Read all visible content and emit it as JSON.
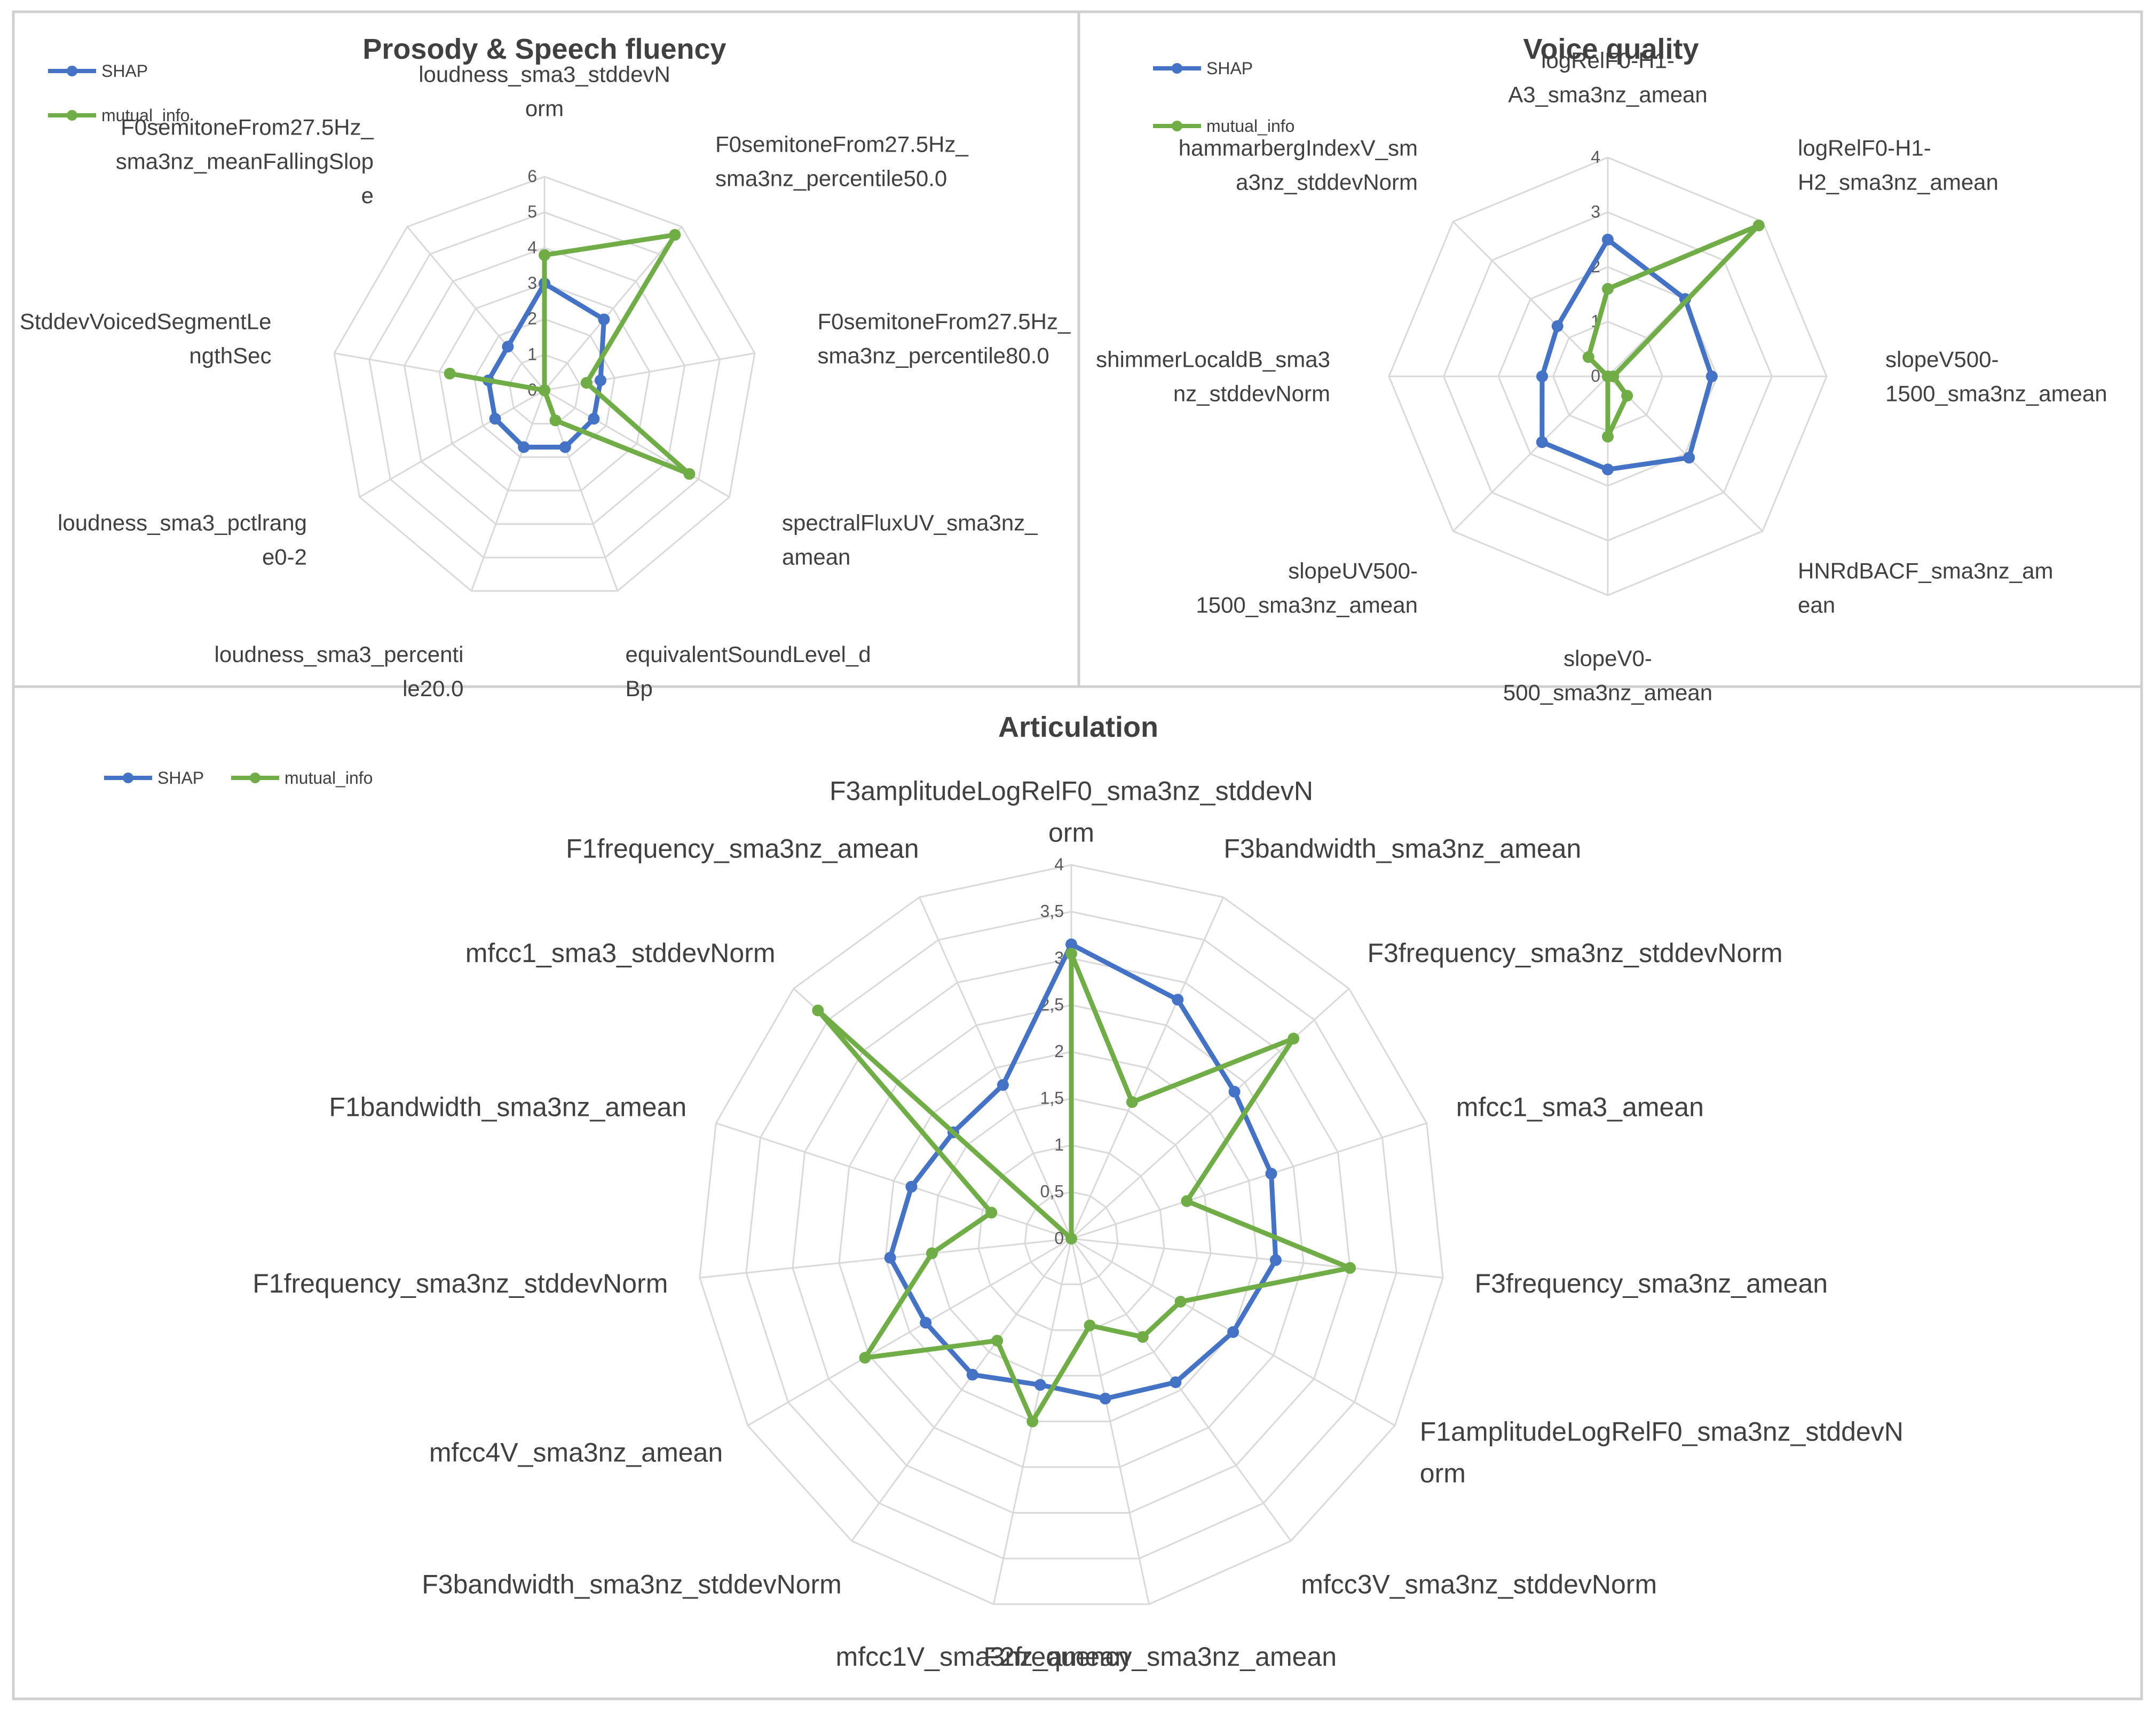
{
  "colors": {
    "shap": "#4472C4",
    "mutual_info": "#70AD47",
    "grid": "#D9D9D9",
    "border": "#D0D0D0",
    "text": "#404040",
    "tick": "#595959"
  },
  "legend_labels": {
    "shap": "SHAP",
    "mutual_info": "mutual_info"
  },
  "chart_data": [
    {
      "type": "radar",
      "title": "Prosody & Speech fluency",
      "legend_position": "top-left",
      "grid": true,
      "rmax": 6,
      "ticks": [
        "0",
        "1",
        "2",
        "3",
        "4",
        "5",
        "6"
      ],
      "categories": [
        "loudness_sma3_stddevNorm",
        "F0semitoneFrom27.5Hz_sma3nz_percentile50.0",
        "F0semitoneFrom27.5Hz_sma3nz_percentile80.0",
        "spectralFluxUV_sma3nz_amean",
        "equivalentSoundLevel_dBp",
        "loudness_sma3_percentile20.0",
        "loudness_sma3_pctlrange0-2",
        "StddevVoicedSegmentLengthSec",
        "F0semitoneFrom27.5Hz_sma3nz_meanFallingSlope"
      ],
      "category_lines": [
        [
          "loudness_sma3_stddevN",
          "orm"
        ],
        [
          "F0semitoneFrom27.5Hz_",
          "sma3nz_percentile50.0"
        ],
        [
          "F0semitoneFrom27.5Hz_",
          "sma3nz_percentile80.0"
        ],
        [
          "spectralFluxUV_sma3nz_",
          "amean"
        ],
        [
          "equivalentSoundLevel_d",
          "Bp"
        ],
        [
          "loudness_sma3_percenti",
          "le20.0"
        ],
        [
          "loudness_sma3_pctlrang",
          "e0-2"
        ],
        [
          "StddevVoicedSegmentLe",
          "ngthSec"
        ],
        [
          "F0semitoneFrom27.5Hz_",
          "sma3nz_meanFallingSlop",
          "e"
        ]
      ],
      "series": [
        {
          "name": "SHAP",
          "values": [
            3.0,
            2.6,
            1.6,
            1.6,
            1.7,
            1.7,
            1.6,
            1.6,
            1.6
          ]
        },
        {
          "name": "mutual_info",
          "values": [
            3.8,
            5.7,
            1.2,
            4.7,
            0.9,
            0.0,
            0.0,
            2.7,
            0.0
          ]
        }
      ]
    },
    {
      "type": "radar",
      "title": "Voice quality",
      "legend_position": "top-left",
      "grid": true,
      "rmax": 4,
      "ticks": [
        "0",
        "1",
        "2",
        "3",
        "4"
      ],
      "categories": [
        "logRelF0-H1-A3_sma3nz_amean",
        "logRelF0-H1-H2_sma3nz_amean",
        "slopeV500-1500_sma3nz_amean",
        "HNRdBACF_sma3nz_amean",
        "slopeV0-500_sma3nz_amean",
        "slopeUV500-1500_sma3nz_amean",
        "shimmerLocaldB_sma3nz_stddevNorm",
        "hammarbergIndexV_sma3nz_stddevNorm"
      ],
      "category_lines": [
        [
          "logRelF0-H1-",
          "A3_sma3nz_amean"
        ],
        [
          "logRelF0-H1-",
          "H2_sma3nz_amean"
        ],
        [
          "slopeV500-",
          "1500_sma3nz_amean"
        ],
        [
          "HNRdBACF_sma3nz_am",
          "ean"
        ],
        [
          "slopeV0-",
          "500_sma3nz_amean"
        ],
        [
          "slopeUV500-",
          "1500_sma3nz_amean"
        ],
        [
          "shimmerLocaldB_sma3",
          "nz_stddevNorm"
        ],
        [
          "hammarbergIndexV_sm",
          "a3nz_stddevNorm"
        ]
      ],
      "series": [
        {
          "name": "SHAP",
          "values": [
            2.5,
            2.0,
            1.9,
            2.1,
            1.7,
            1.7,
            1.2,
            1.3
          ]
        },
        {
          "name": "mutual_info",
          "values": [
            1.6,
            3.9,
            0.1,
            0.5,
            1.1,
            0.0,
            0.0,
            0.5
          ]
        }
      ]
    },
    {
      "type": "radar",
      "title": "Articulation",
      "legend_position": "top-left",
      "grid": true,
      "rmax": 4,
      "ticks": [
        "0",
        "0,5",
        "1",
        "1,5",
        "2",
        "2,5",
        "3",
        "3,5",
        "4"
      ],
      "categories": [
        "F3amplitudeLogRelF0_sma3nz_stddevNorm",
        "F3bandwidth_sma3nz_amean",
        "F3frequency_sma3nz_stddevNorm",
        "mfcc1_sma3_amean",
        "F3frequency_sma3nz_amean",
        "F1amplitudeLogRelF0_sma3nz_stddevNorm",
        "mfcc3V_sma3nz_stddevNorm",
        "F2frequency_sma3nz_amean",
        "mfcc1V_sma3nz_amean",
        "F3bandwidth_sma3nz_stddevNorm",
        "mfcc4V_sma3nz_amean",
        "F1frequency_sma3nz_stddevNorm",
        "F1bandwidth_sma3nz_amean",
        "mfcc1_sma3_stddevNorm",
        "F1frequency_sma3nz_amean"
      ],
      "category_lines": [
        [
          "F3amplitudeLogRelF0_sma3nz_stddevN",
          "orm"
        ],
        [
          "F3bandwidth_sma3nz_amean"
        ],
        [
          "F3frequency_sma3nz_stddevNorm"
        ],
        [
          "mfcc1_sma3_amean"
        ],
        [
          "F3frequency_sma3nz_amean"
        ],
        [
          "F1amplitudeLogRelF0_sma3nz_stddevN",
          "orm"
        ],
        [
          "mfcc3V_sma3nz_stddevNorm"
        ],
        [
          "F2frequency_sma3nz_amean"
        ],
        [
          "mfcc1V_sma3nz_amean"
        ],
        [
          "F3bandwidth_sma3nz_stddevNorm"
        ],
        [
          "mfcc4V_sma3nz_amean"
        ],
        [
          "F1frequency_sma3nz_stddevNorm"
        ],
        [
          "F1bandwidth_sma3nz_amean"
        ],
        [
          "mfcc1_sma3_stddevNorm"
        ],
        [
          "F1frequency_sma3nz_amean"
        ]
      ],
      "series": [
        {
          "name": "SHAP",
          "values": [
            3.15,
            2.8,
            2.35,
            2.25,
            2.2,
            2.0,
            1.9,
            1.75,
            1.6,
            1.8,
            1.8,
            1.95,
            1.8,
            1.7,
            1.8
          ]
        },
        {
          "name": "mutual_info",
          "values": [
            3.05,
            1.6,
            3.2,
            1.3,
            3.0,
            1.35,
            1.3,
            0.95,
            2.0,
            1.35,
            2.55,
            1.5,
            0.9,
            3.65,
            0.0
          ]
        }
      ]
    }
  ]
}
